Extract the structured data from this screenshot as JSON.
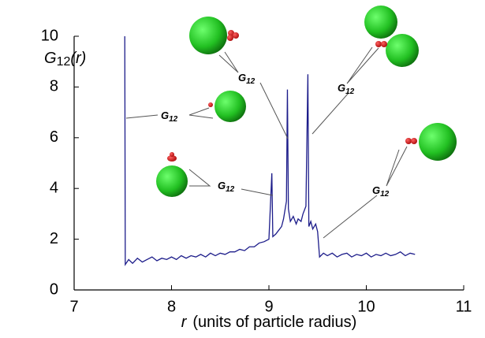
{
  "chart_data": {
    "type": "line",
    "y_label": {
      "base": "G",
      "sub": "12",
      "rest": "(r)"
    },
    "x_label": {
      "var": "r",
      "rest": "(units of particle radius)"
    },
    "annotations": [
      {
        "base": "G",
        "sub": "12"
      },
      {
        "base": "G",
        "sub": "12"
      },
      {
        "base": "G",
        "sub": "12"
      },
      {
        "base": "G",
        "sub": "12"
      },
      {
        "base": "G",
        "sub": "12"
      }
    ],
    "xlim": [
      7,
      11
    ],
    "xticks": [
      7,
      8,
      9,
      10,
      11
    ],
    "ylim": [
      0,
      10
    ],
    "yticks": [
      0,
      2,
      4,
      6,
      8,
      10
    ],
    "series": [
      {
        "color": "#1c1c8a",
        "x": [
          7.52,
          7.525,
          7.56,
          7.6,
          7.65,
          7.7,
          7.75,
          7.8,
          7.85,
          7.9,
          7.95,
          8.0,
          8.05,
          8.1,
          8.15,
          8.2,
          8.25,
          8.3,
          8.35,
          8.4,
          8.45,
          8.5,
          8.55,
          8.6,
          8.65,
          8.7,
          8.75,
          8.8,
          8.85,
          8.9,
          8.95,
          9.0,
          9.03,
          9.04,
          9.07,
          9.1,
          9.13,
          9.15,
          9.18,
          9.19,
          9.2,
          9.22,
          9.25,
          9.28,
          9.3,
          9.33,
          9.35,
          9.38,
          9.4,
          9.41,
          9.43,
          9.45,
          9.48,
          9.5,
          9.52,
          9.56,
          9.6,
          9.65,
          9.7,
          9.75,
          9.8,
          9.85,
          9.9,
          9.95,
          10.0,
          10.05,
          10.1,
          10.15,
          10.2,
          10.25,
          10.3,
          10.35,
          10.4,
          10.45,
          10.5
        ],
        "values": [
          10.0,
          1.0,
          1.2,
          1.05,
          1.25,
          1.1,
          1.2,
          1.3,
          1.15,
          1.25,
          1.2,
          1.3,
          1.2,
          1.35,
          1.25,
          1.35,
          1.3,
          1.4,
          1.3,
          1.45,
          1.35,
          1.45,
          1.4,
          1.5,
          1.5,
          1.6,
          1.55,
          1.7,
          1.7,
          1.85,
          1.9,
          2.0,
          4.6,
          2.1,
          2.2,
          2.35,
          2.5,
          2.8,
          3.5,
          7.9,
          3.2,
          2.7,
          2.9,
          2.6,
          2.8,
          2.7,
          3.0,
          3.3,
          8.5,
          2.5,
          2.7,
          2.4,
          2.6,
          2.3,
          1.3,
          1.45,
          1.35,
          1.45,
          1.3,
          1.4,
          1.45,
          1.3,
          1.4,
          1.35,
          1.45,
          1.3,
          1.4,
          1.35,
          1.45,
          1.35,
          1.4,
          1.5,
          1.35,
          1.45,
          1.4
        ]
      }
    ]
  }
}
